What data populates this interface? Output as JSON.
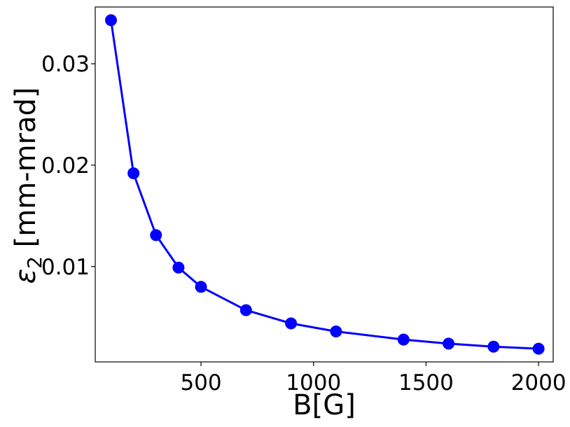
{
  "chart_data": {
    "type": "line",
    "xlabel": "B[G]",
    "ylabel_symbol": "ε",
    "ylabel_subscript": "2",
    "ylabel_unit": " [mm-mrad]",
    "xlim": [
      30,
      2065
    ],
    "ylim": [
      0.0006,
      0.0356
    ],
    "xticks": [
      500,
      1000,
      1500,
      2000
    ],
    "xtick_labels": [
      "500",
      "1000",
      "1500",
      "2000"
    ],
    "yticks": [
      0.01,
      0.02,
      0.03
    ],
    "ytick_labels": [
      "0.01",
      "0.02",
      "0.03"
    ],
    "grid": false,
    "series": [
      {
        "color": "#0000ff",
        "marker": "circle",
        "x": [
          100,
          200,
          300,
          400,
          500,
          700,
          900,
          1100,
          1400,
          1600,
          1800,
          2000
        ],
        "y": [
          0.0343,
          0.0192,
          0.0131,
          0.0099,
          0.008,
          0.0057,
          0.0044,
          0.0036,
          0.0028,
          0.0024,
          0.0021,
          0.0019
        ]
      }
    ]
  }
}
